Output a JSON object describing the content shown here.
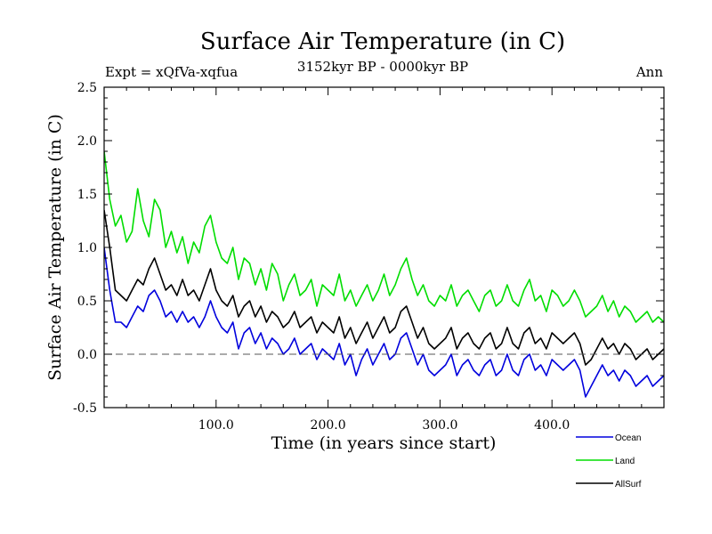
{
  "chart_data": {
    "type": "line",
    "title": "Surface Air Temperature (in C)",
    "subtitle_left": "Expt = xQfVa-xqfua",
    "subtitle_center": "3152kyr BP - 0000kyr BP",
    "subtitle_right": "Ann",
    "xlabel": "Time (in years since start)",
    "ylabel": "Surface Air Temperature (in C)",
    "xlim": [
      0,
      500
    ],
    "ylim": [
      -0.5,
      2.5
    ],
    "xticks": [
      100,
      200,
      300,
      400
    ],
    "xtick_labels": [
      "100.0",
      "200.0",
      "300.0",
      "400.0"
    ],
    "yticks": [
      -0.5,
      0.0,
      0.5,
      1.0,
      1.5,
      2.0,
      2.5
    ],
    "ytick_labels": [
      "-0.5",
      "0.0",
      "0.5",
      "1.0",
      "1.5",
      "2.0",
      "2.5"
    ],
    "reference_line_y": 0.0,
    "series": [
      {
        "name": "Land",
        "color": "#00dd00",
        "x": [
          0,
          5,
          10,
          15,
          20,
          25,
          30,
          35,
          40,
          45,
          50,
          55,
          60,
          65,
          70,
          75,
          80,
          85,
          90,
          95,
          100,
          105,
          110,
          115,
          120,
          125,
          130,
          135,
          140,
          145,
          150,
          155,
          160,
          165,
          170,
          175,
          180,
          185,
          190,
          195,
          200,
          205,
          210,
          215,
          220,
          225,
          230,
          235,
          240,
          245,
          250,
          255,
          260,
          265,
          270,
          275,
          280,
          285,
          290,
          295,
          300,
          305,
          310,
          315,
          320,
          325,
          330,
          335,
          340,
          345,
          350,
          355,
          360,
          365,
          370,
          375,
          380,
          385,
          390,
          395,
          400,
          405,
          410,
          415,
          420,
          425,
          430,
          435,
          440,
          445,
          450,
          455,
          460,
          465,
          470,
          475,
          480,
          485,
          490,
          495,
          500
        ],
        "values": [
          1.9,
          1.45,
          1.2,
          1.3,
          1.05,
          1.15,
          1.55,
          1.25,
          1.1,
          1.45,
          1.35,
          1.0,
          1.15,
          0.95,
          1.1,
          0.85,
          1.05,
          0.95,
          1.2,
          1.3,
          1.05,
          0.9,
          0.85,
          1.0,
          0.7,
          0.9,
          0.85,
          0.65,
          0.8,
          0.6,
          0.85,
          0.75,
          0.5,
          0.65,
          0.75,
          0.55,
          0.6,
          0.7,
          0.45,
          0.65,
          0.6,
          0.55,
          0.75,
          0.5,
          0.6,
          0.45,
          0.55,
          0.65,
          0.5,
          0.6,
          0.75,
          0.55,
          0.65,
          0.8,
          0.9,
          0.7,
          0.55,
          0.65,
          0.5,
          0.45,
          0.55,
          0.5,
          0.65,
          0.45,
          0.55,
          0.6,
          0.5,
          0.4,
          0.55,
          0.6,
          0.45,
          0.5,
          0.65,
          0.5,
          0.45,
          0.6,
          0.7,
          0.5,
          0.55,
          0.4,
          0.6,
          0.55,
          0.45,
          0.5,
          0.6,
          0.5,
          0.35,
          0.4,
          0.45,
          0.55,
          0.4,
          0.5,
          0.35,
          0.45,
          0.4,
          0.3,
          0.35,
          0.4,
          0.3,
          0.35,
          0.3
        ]
      },
      {
        "name": "AllSurf",
        "color": "#000000",
        "x": [
          0,
          5,
          10,
          15,
          20,
          25,
          30,
          35,
          40,
          45,
          50,
          55,
          60,
          65,
          70,
          75,
          80,
          85,
          90,
          95,
          100,
          105,
          110,
          115,
          120,
          125,
          130,
          135,
          140,
          145,
          150,
          155,
          160,
          165,
          170,
          175,
          180,
          185,
          190,
          195,
          200,
          205,
          210,
          215,
          220,
          225,
          230,
          235,
          240,
          245,
          250,
          255,
          260,
          265,
          270,
          275,
          280,
          285,
          290,
          295,
          300,
          305,
          310,
          315,
          320,
          325,
          330,
          335,
          340,
          345,
          350,
          355,
          360,
          365,
          370,
          375,
          380,
          385,
          390,
          395,
          400,
          405,
          410,
          415,
          420,
          425,
          430,
          435,
          440,
          445,
          450,
          455,
          460,
          465,
          470,
          475,
          480,
          485,
          490,
          495,
          500
        ],
        "values": [
          1.35,
          1.0,
          0.6,
          0.55,
          0.5,
          0.6,
          0.7,
          0.65,
          0.8,
          0.9,
          0.75,
          0.6,
          0.65,
          0.55,
          0.7,
          0.55,
          0.6,
          0.5,
          0.65,
          0.8,
          0.6,
          0.5,
          0.45,
          0.55,
          0.35,
          0.45,
          0.5,
          0.35,
          0.45,
          0.3,
          0.4,
          0.35,
          0.25,
          0.3,
          0.4,
          0.25,
          0.3,
          0.35,
          0.2,
          0.3,
          0.25,
          0.2,
          0.35,
          0.15,
          0.25,
          0.1,
          0.2,
          0.3,
          0.15,
          0.25,
          0.35,
          0.2,
          0.25,
          0.4,
          0.45,
          0.3,
          0.15,
          0.25,
          0.1,
          0.05,
          0.1,
          0.15,
          0.25,
          0.05,
          0.15,
          0.2,
          0.1,
          0.05,
          0.15,
          0.2,
          0.05,
          0.1,
          0.25,
          0.1,
          0.05,
          0.2,
          0.25,
          0.1,
          0.15,
          0.05,
          0.2,
          0.15,
          0.1,
          0.15,
          0.2,
          0.1,
          -0.1,
          -0.05,
          0.05,
          0.15,
          0.05,
          0.1,
          0.0,
          0.1,
          0.05,
          -0.05,
          0.0,
          0.05,
          -0.05,
          0.0,
          0.05
        ]
      },
      {
        "name": "Ocean",
        "color": "#0000dd",
        "x": [
          0,
          5,
          10,
          15,
          20,
          25,
          30,
          35,
          40,
          45,
          50,
          55,
          60,
          65,
          70,
          75,
          80,
          85,
          90,
          95,
          100,
          105,
          110,
          115,
          120,
          125,
          130,
          135,
          140,
          145,
          150,
          155,
          160,
          165,
          170,
          175,
          180,
          185,
          190,
          195,
          200,
          205,
          210,
          215,
          220,
          225,
          230,
          235,
          240,
          245,
          250,
          255,
          260,
          265,
          270,
          275,
          280,
          285,
          290,
          295,
          300,
          305,
          310,
          315,
          320,
          325,
          330,
          335,
          340,
          345,
          350,
          355,
          360,
          365,
          370,
          375,
          380,
          385,
          390,
          395,
          400,
          405,
          410,
          415,
          420,
          425,
          430,
          435,
          440,
          445,
          450,
          455,
          460,
          465,
          470,
          475,
          480,
          485,
          490,
          495,
          500
        ],
        "values": [
          1.0,
          0.6,
          0.3,
          0.3,
          0.25,
          0.35,
          0.45,
          0.4,
          0.55,
          0.6,
          0.5,
          0.35,
          0.4,
          0.3,
          0.4,
          0.3,
          0.35,
          0.25,
          0.35,
          0.5,
          0.35,
          0.25,
          0.2,
          0.3,
          0.05,
          0.2,
          0.25,
          0.1,
          0.2,
          0.05,
          0.15,
          0.1,
          0.0,
          0.05,
          0.15,
          0.0,
          0.05,
          0.1,
          -0.05,
          0.05,
          0.0,
          -0.05,
          0.1,
          -0.1,
          0.0,
          -0.2,
          -0.05,
          0.05,
          -0.1,
          0.0,
          0.1,
          -0.05,
          0.0,
          0.15,
          0.2,
          0.05,
          -0.1,
          0.0,
          -0.15,
          -0.2,
          -0.15,
          -0.1,
          0.0,
          -0.2,
          -0.1,
          -0.05,
          -0.15,
          -0.2,
          -0.1,
          -0.05,
          -0.2,
          -0.15,
          0.0,
          -0.15,
          -0.2,
          -0.05,
          0.0,
          -0.15,
          -0.1,
          -0.2,
          -0.05,
          -0.1,
          -0.15,
          -0.1,
          -0.05,
          -0.15,
          -0.4,
          -0.3,
          -0.2,
          -0.1,
          -0.2,
          -0.15,
          -0.25,
          -0.15,
          -0.2,
          -0.3,
          -0.25,
          -0.2,
          -0.3,
          -0.25,
          -0.2
        ]
      }
    ],
    "legend": [
      {
        "name": "Ocean",
        "color": "#0000dd"
      },
      {
        "name": "Land",
        "color": "#00dd00"
      },
      {
        "name": "AllSurf",
        "color": "#000000"
      }
    ],
    "legend_position": "bottom-right"
  }
}
